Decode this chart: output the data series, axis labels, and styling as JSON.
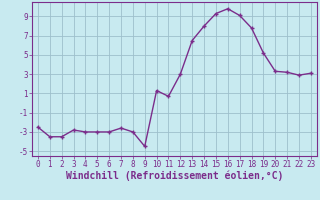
{
  "x": [
    0,
    1,
    2,
    3,
    4,
    5,
    6,
    7,
    8,
    9,
    10,
    11,
    12,
    13,
    14,
    15,
    16,
    17,
    18,
    19,
    20,
    21,
    22,
    23
  ],
  "y": [
    -2.5,
    -3.5,
    -3.5,
    -2.8,
    -3.0,
    -3.0,
    -3.0,
    -2.6,
    -3.0,
    -4.5,
    1.3,
    0.7,
    3.0,
    6.5,
    8.0,
    9.3,
    9.8,
    9.1,
    7.8,
    5.2,
    3.3,
    3.2,
    2.9,
    3.1
  ],
  "line_color": "#7b2d8b",
  "marker": "+",
  "marker_size": 4,
  "bg_color": "#c8eaf0",
  "grid_color": "#9dbfcc",
  "xlabel": "Windchill (Refroidissement éolien,°C)",
  "ylabel": "",
  "title": "",
  "xlim": [
    -0.5,
    23.5
  ],
  "ylim": [
    -5.5,
    10.5
  ],
  "yticks": [
    -5,
    -3,
    -1,
    1,
    3,
    5,
    7,
    9
  ],
  "xticks": [
    0,
    1,
    2,
    3,
    4,
    5,
    6,
    7,
    8,
    9,
    10,
    11,
    12,
    13,
    14,
    15,
    16,
    17,
    18,
    19,
    20,
    21,
    22,
    23
  ],
  "tick_label_fontsize": 5.5,
  "xlabel_fontsize": 7.0,
  "line_width": 1.0,
  "spine_color": "#7b2d8b",
  "marker_size_line": 3.5
}
